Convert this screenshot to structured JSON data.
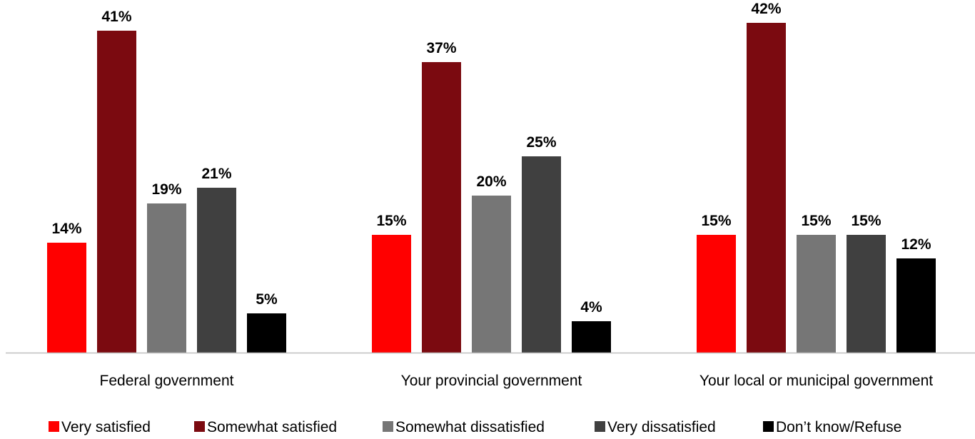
{
  "chart_data": {
    "type": "bar",
    "title": "",
    "xlabel": "",
    "ylabel": "",
    "ylim": [
      0,
      44
    ],
    "grid": false,
    "legend_position": "bottom",
    "value_suffix": "%",
    "categories": [
      "Federal government",
      "Your provincial government",
      "Your local or municipal government"
    ],
    "series": [
      {
        "name": "Very satisfied",
        "color": "#ff0000",
        "values": [
          14,
          15,
          15
        ]
      },
      {
        "name": "Somewhat satisfied",
        "color": "#7b0a10",
        "values": [
          41,
          37,
          42
        ]
      },
      {
        "name": "Somewhat dissatisfied",
        "color": "#767676",
        "values": [
          19,
          20,
          15
        ]
      },
      {
        "name": "Very dissatisfied",
        "color": "#404040",
        "values": [
          21,
          25,
          15
        ]
      },
      {
        "name": "Don’t know/Refuse",
        "color": "#000000",
        "values": [
          5,
          4,
          12
        ]
      }
    ],
    "data_labels": [
      [
        "14%",
        "15%",
        "15%"
      ],
      [
        "41%",
        "37%",
        "42%"
      ],
      [
        "19%",
        "20%",
        "15%"
      ],
      [
        "21%",
        "25%",
        "15%"
      ],
      [
        "5%",
        "4%",
        "12%"
      ]
    ],
    "axis_color": "#bfbfbf"
  }
}
